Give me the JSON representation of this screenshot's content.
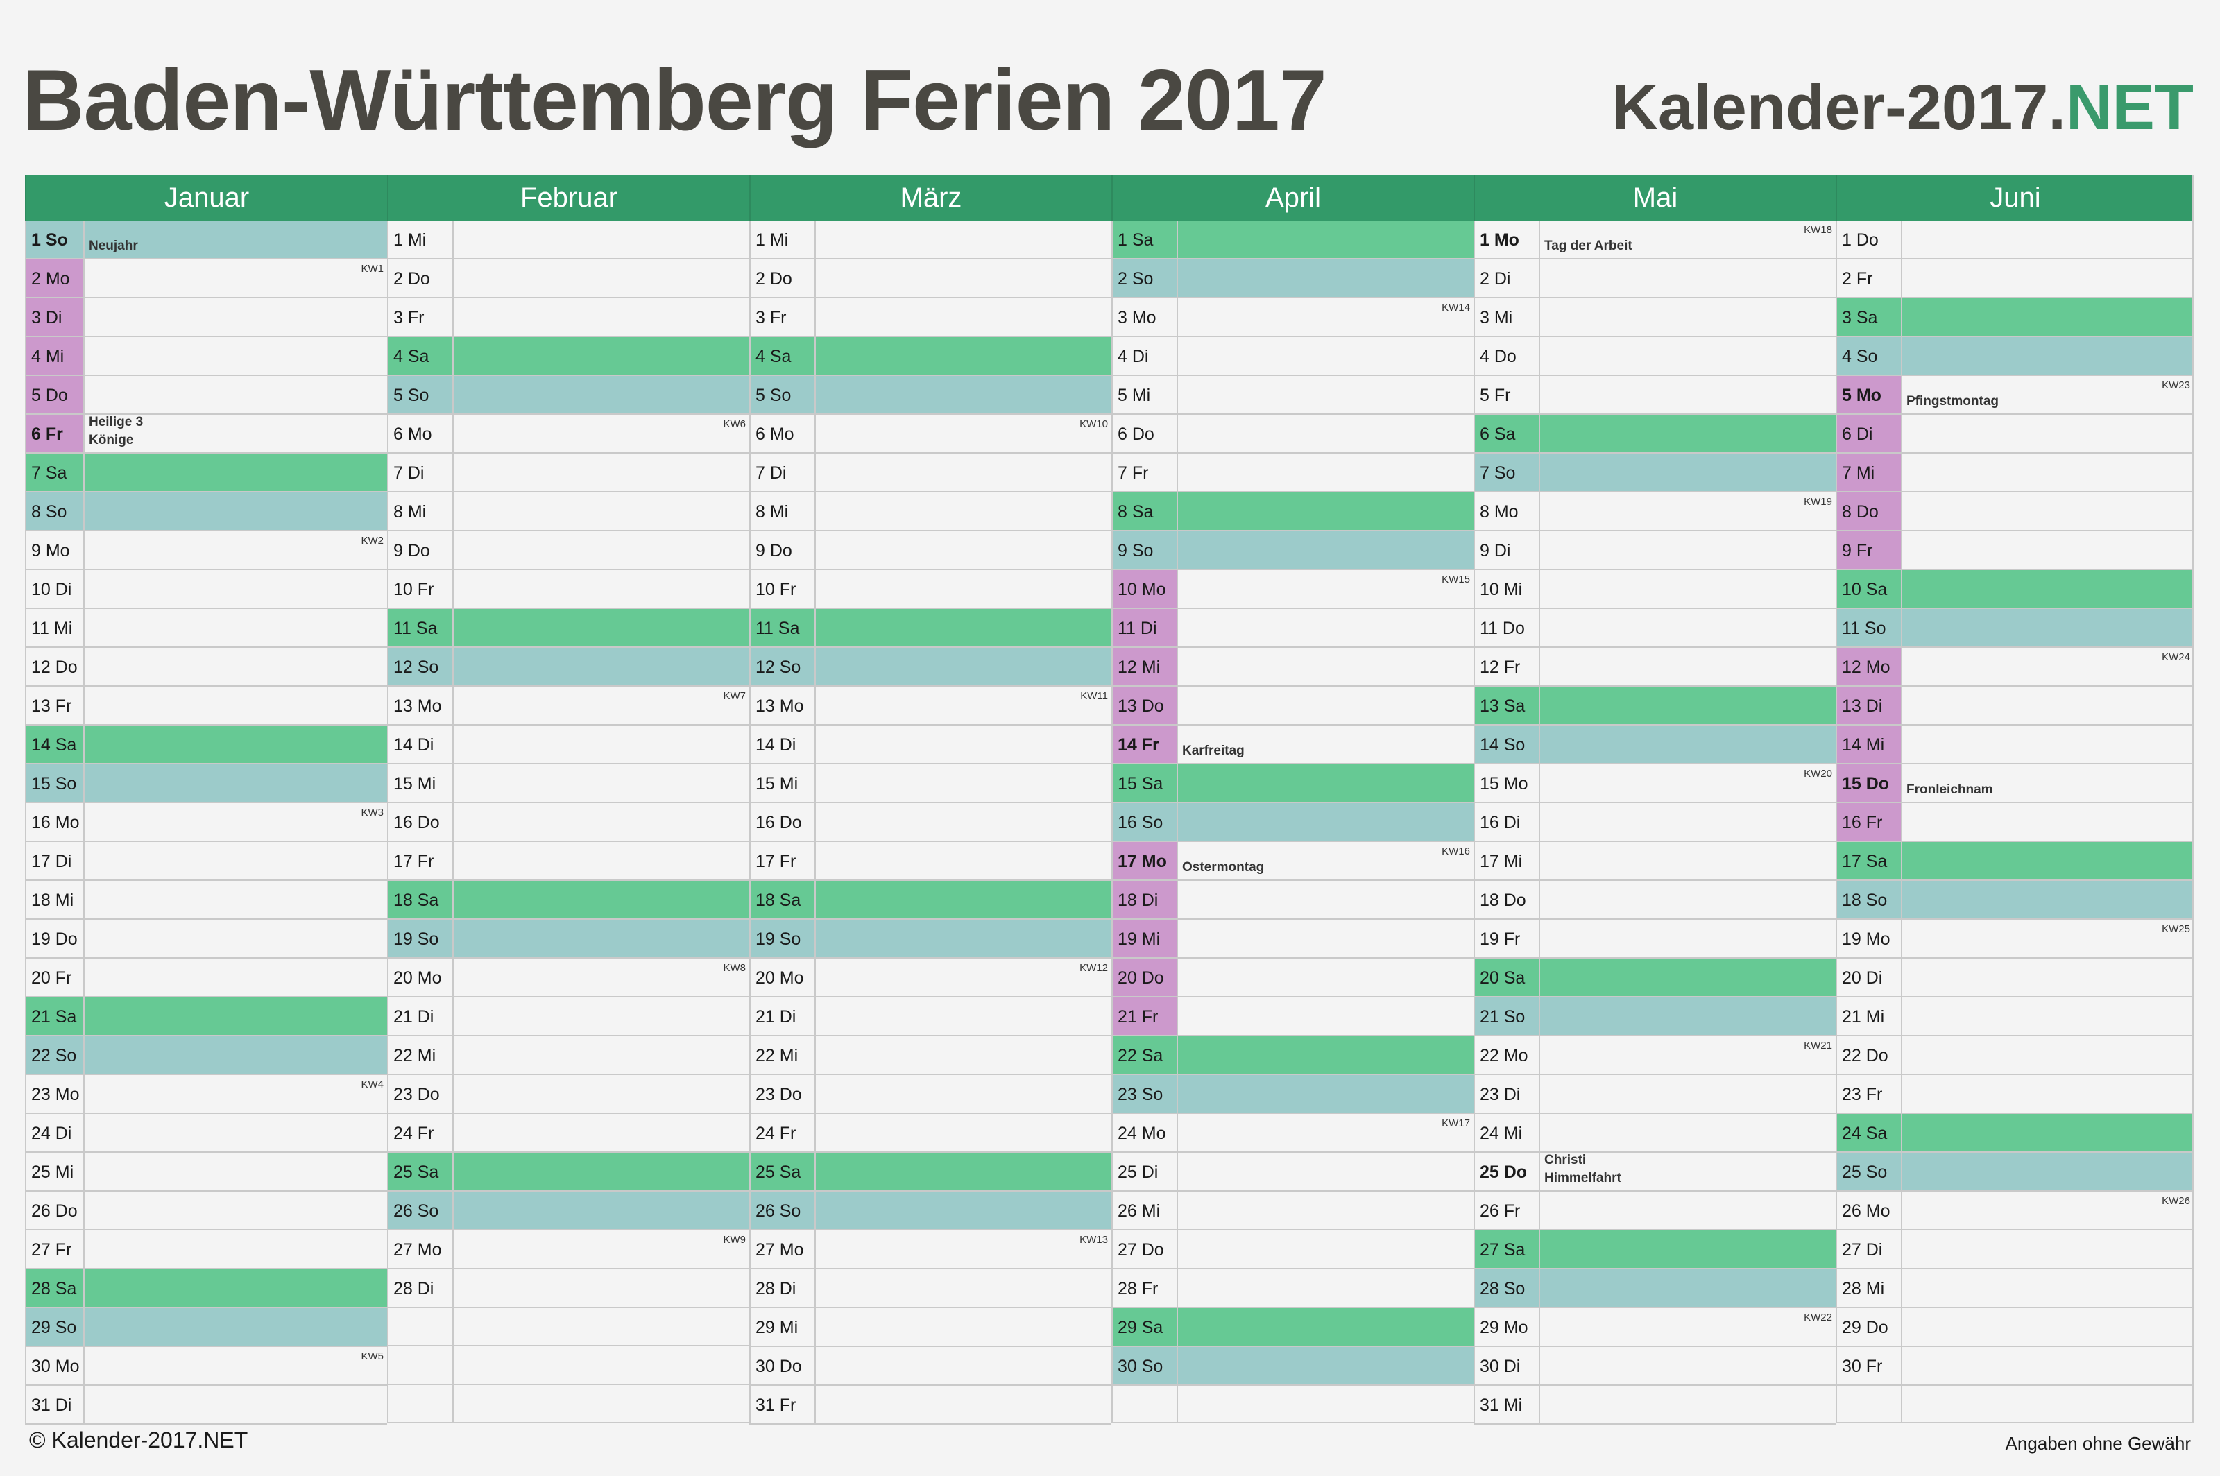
{
  "title": "Baden-Württemberg Ferien 2017",
  "brand": {
    "main": "Kalender-2017.",
    "accent": ".NET"
  },
  "colors": {
    "header": "#339a69",
    "saturday": "#66c994",
    "sunday": "#9ccbca",
    "vacation": "#cc99cc",
    "brand_accent": "#3a9a6c"
  },
  "months": [
    {
      "name": "Januar",
      "days": [
        {
          "label": "1 So",
          "type": "so",
          "holiday": "Neujahr",
          "vacation": false
        },
        {
          "label": "2 Mo",
          "type": "",
          "vacation": true,
          "kw": "KW1"
        },
        {
          "label": "3 Di",
          "type": "",
          "vacation": true
        },
        {
          "label": "4 Mi",
          "type": "",
          "vacation": true
        },
        {
          "label": "5 Do",
          "type": "",
          "vacation": true
        },
        {
          "label": "6 Fr",
          "type": "",
          "vacation": true,
          "holiday": "Heilige 3\nKönige"
        },
        {
          "label": "7 Sa",
          "type": "sa"
        },
        {
          "label": "8 So",
          "type": "so"
        },
        {
          "label": "9 Mo",
          "type": "",
          "kw": "KW2"
        },
        {
          "label": "10 Di",
          "type": ""
        },
        {
          "label": "11 Mi",
          "type": ""
        },
        {
          "label": "12 Do",
          "type": ""
        },
        {
          "label": "13 Fr",
          "type": ""
        },
        {
          "label": "14 Sa",
          "type": "sa"
        },
        {
          "label": "15 So",
          "type": "so"
        },
        {
          "label": "16 Mo",
          "type": "",
          "kw": "KW3"
        },
        {
          "label": "17 Di",
          "type": ""
        },
        {
          "label": "18 Mi",
          "type": ""
        },
        {
          "label": "19 Do",
          "type": ""
        },
        {
          "label": "20 Fr",
          "type": ""
        },
        {
          "label": "21 Sa",
          "type": "sa"
        },
        {
          "label": "22 So",
          "type": "so"
        },
        {
          "label": "23 Mo",
          "type": "",
          "kw": "KW4"
        },
        {
          "label": "24 Di",
          "type": ""
        },
        {
          "label": "25 Mi",
          "type": ""
        },
        {
          "label": "26 Do",
          "type": ""
        },
        {
          "label": "27 Fr",
          "type": ""
        },
        {
          "label": "28 Sa",
          "type": "sa"
        },
        {
          "label": "29 So",
          "type": "so"
        },
        {
          "label": "30 Mo",
          "type": "",
          "kw": "KW5"
        },
        {
          "label": "31 Di",
          "type": ""
        }
      ]
    },
    {
      "name": "Februar",
      "days": [
        {
          "label": "1 Mi",
          "type": ""
        },
        {
          "label": "2 Do",
          "type": ""
        },
        {
          "label": "3 Fr",
          "type": ""
        },
        {
          "label": "4 Sa",
          "type": "sa"
        },
        {
          "label": "5 So",
          "type": "so"
        },
        {
          "label": "6 Mo",
          "type": "",
          "kw": "KW6"
        },
        {
          "label": "7 Di",
          "type": ""
        },
        {
          "label": "8 Mi",
          "type": ""
        },
        {
          "label": "9 Do",
          "type": ""
        },
        {
          "label": "10 Fr",
          "type": ""
        },
        {
          "label": "11 Sa",
          "type": "sa"
        },
        {
          "label": "12 So",
          "type": "so"
        },
        {
          "label": "13 Mo",
          "type": "",
          "kw": "KW7"
        },
        {
          "label": "14 Di",
          "type": ""
        },
        {
          "label": "15 Mi",
          "type": ""
        },
        {
          "label": "16 Do",
          "type": ""
        },
        {
          "label": "17 Fr",
          "type": ""
        },
        {
          "label": "18 Sa",
          "type": "sa"
        },
        {
          "label": "19 So",
          "type": "so"
        },
        {
          "label": "20 Mo",
          "type": "",
          "kw": "KW8"
        },
        {
          "label": "21 Di",
          "type": ""
        },
        {
          "label": "22 Mi",
          "type": ""
        },
        {
          "label": "23 Do",
          "type": ""
        },
        {
          "label": "24 Fr",
          "type": ""
        },
        {
          "label": "25 Sa",
          "type": "sa"
        },
        {
          "label": "26 So",
          "type": "so"
        },
        {
          "label": "27 Mo",
          "type": "",
          "kw": "KW9"
        },
        {
          "label": "28 Di",
          "type": ""
        }
      ]
    },
    {
      "name": "März",
      "days": [
        {
          "label": "1 Mi",
          "type": ""
        },
        {
          "label": "2 Do",
          "type": ""
        },
        {
          "label": "3 Fr",
          "type": ""
        },
        {
          "label": "4 Sa",
          "type": "sa"
        },
        {
          "label": "5 So",
          "type": "so"
        },
        {
          "label": "6 Mo",
          "type": "",
          "kw": "KW10"
        },
        {
          "label": "7 Di",
          "type": ""
        },
        {
          "label": "8 Mi",
          "type": ""
        },
        {
          "label": "9 Do",
          "type": ""
        },
        {
          "label": "10 Fr",
          "type": ""
        },
        {
          "label": "11 Sa",
          "type": "sa"
        },
        {
          "label": "12 So",
          "type": "so"
        },
        {
          "label": "13 Mo",
          "type": "",
          "kw": "KW11"
        },
        {
          "label": "14 Di",
          "type": ""
        },
        {
          "label": "15 Mi",
          "type": ""
        },
        {
          "label": "16 Do",
          "type": ""
        },
        {
          "label": "17 Fr",
          "type": ""
        },
        {
          "label": "18 Sa",
          "type": "sa"
        },
        {
          "label": "19 So",
          "type": "so"
        },
        {
          "label": "20 Mo",
          "type": "",
          "kw": "KW12"
        },
        {
          "label": "21 Di",
          "type": ""
        },
        {
          "label": "22 Mi",
          "type": ""
        },
        {
          "label": "23 Do",
          "type": ""
        },
        {
          "label": "24 Fr",
          "type": ""
        },
        {
          "label": "25 Sa",
          "type": "sa"
        },
        {
          "label": "26 So",
          "type": "so"
        },
        {
          "label": "27 Mo",
          "type": "",
          "kw": "KW13"
        },
        {
          "label": "28 Di",
          "type": ""
        },
        {
          "label": "29 Mi",
          "type": ""
        },
        {
          "label": "30 Do",
          "type": ""
        },
        {
          "label": "31 Fr",
          "type": ""
        }
      ]
    },
    {
      "name": "April",
      "days": [
        {
          "label": "1 Sa",
          "type": "sa"
        },
        {
          "label": "2 So",
          "type": "so"
        },
        {
          "label": "3 Mo",
          "type": "",
          "kw": "KW14"
        },
        {
          "label": "4 Di",
          "type": ""
        },
        {
          "label": "5 Mi",
          "type": ""
        },
        {
          "label": "6 Do",
          "type": ""
        },
        {
          "label": "7 Fr",
          "type": ""
        },
        {
          "label": "8 Sa",
          "type": "sa"
        },
        {
          "label": "9 So",
          "type": "so"
        },
        {
          "label": "10 Mo",
          "type": "",
          "vacation": true,
          "kw": "KW15"
        },
        {
          "label": "11 Di",
          "type": "",
          "vacation": true
        },
        {
          "label": "12 Mi",
          "type": "",
          "vacation": true
        },
        {
          "label": "13 Do",
          "type": "",
          "vacation": true
        },
        {
          "label": "14 Fr",
          "type": "",
          "vacation": true,
          "holiday": "Karfreitag"
        },
        {
          "label": "15 Sa",
          "type": "sa"
        },
        {
          "label": "16 So",
          "type": "so"
        },
        {
          "label": "17 Mo",
          "type": "",
          "vacation": true,
          "holiday": "Ostermontag",
          "kw": "KW16"
        },
        {
          "label": "18 Di",
          "type": "",
          "vacation": true
        },
        {
          "label": "19 Mi",
          "type": "",
          "vacation": true
        },
        {
          "label": "20 Do",
          "type": "",
          "vacation": true
        },
        {
          "label": "21 Fr",
          "type": "",
          "vacation": true
        },
        {
          "label": "22 Sa",
          "type": "sa"
        },
        {
          "label": "23 So",
          "type": "so"
        },
        {
          "label": "24 Mo",
          "type": "",
          "kw": "KW17"
        },
        {
          "label": "25 Di",
          "type": ""
        },
        {
          "label": "26 Mi",
          "type": ""
        },
        {
          "label": "27 Do",
          "type": ""
        },
        {
          "label": "28 Fr",
          "type": ""
        },
        {
          "label": "29 Sa",
          "type": "sa"
        },
        {
          "label": "30 So",
          "type": "so"
        }
      ]
    },
    {
      "name": "Mai",
      "days": [
        {
          "label": "1 Mo",
          "type": "",
          "holiday": "Tag der Arbeit",
          "kw": "KW18"
        },
        {
          "label": "2 Di",
          "type": ""
        },
        {
          "label": "3 Mi",
          "type": ""
        },
        {
          "label": "4 Do",
          "type": ""
        },
        {
          "label": "5 Fr",
          "type": ""
        },
        {
          "label": "6 Sa",
          "type": "sa"
        },
        {
          "label": "7 So",
          "type": "so"
        },
        {
          "label": "8 Mo",
          "type": "",
          "kw": "KW19"
        },
        {
          "label": "9 Di",
          "type": ""
        },
        {
          "label": "10 Mi",
          "type": ""
        },
        {
          "label": "11 Do",
          "type": ""
        },
        {
          "label": "12 Fr",
          "type": ""
        },
        {
          "label": "13 Sa",
          "type": "sa"
        },
        {
          "label": "14 So",
          "type": "so"
        },
        {
          "label": "15 Mo",
          "type": "",
          "kw": "KW20"
        },
        {
          "label": "16 Di",
          "type": ""
        },
        {
          "label": "17 Mi",
          "type": ""
        },
        {
          "label": "18 Do",
          "type": ""
        },
        {
          "label": "19 Fr",
          "type": ""
        },
        {
          "label": "20 Sa",
          "type": "sa"
        },
        {
          "label": "21 So",
          "type": "so"
        },
        {
          "label": "22 Mo",
          "type": "",
          "kw": "KW21"
        },
        {
          "label": "23 Di",
          "type": ""
        },
        {
          "label": "24 Mi",
          "type": ""
        },
        {
          "label": "25 Do",
          "type": "",
          "holiday": "Christi\nHimmelfahrt"
        },
        {
          "label": "26 Fr",
          "type": ""
        },
        {
          "label": "27 Sa",
          "type": "sa"
        },
        {
          "label": "28 So",
          "type": "so"
        },
        {
          "label": "29 Mo",
          "type": "",
          "kw": "KW22"
        },
        {
          "label": "30 Di",
          "type": ""
        },
        {
          "label": "31 Mi",
          "type": ""
        }
      ]
    },
    {
      "name": "Juni",
      "days": [
        {
          "label": "1 Do",
          "type": ""
        },
        {
          "label": "2 Fr",
          "type": ""
        },
        {
          "label": "3 Sa",
          "type": "sa"
        },
        {
          "label": "4 So",
          "type": "so"
        },
        {
          "label": "5 Mo",
          "type": "",
          "vacation": true,
          "holiday": "Pfingstmontag",
          "kw": "KW23"
        },
        {
          "label": "6 Di",
          "type": "",
          "vacation": true
        },
        {
          "label": "7 Mi",
          "type": "",
          "vacation": true
        },
        {
          "label": "8 Do",
          "type": "",
          "vacation": true
        },
        {
          "label": "9 Fr",
          "type": "",
          "vacation": true
        },
        {
          "label": "10 Sa",
          "type": "sa"
        },
        {
          "label": "11 So",
          "type": "so"
        },
        {
          "label": "12 Mo",
          "type": "",
          "vacation": true,
          "kw": "KW24"
        },
        {
          "label": "13 Di",
          "type": "",
          "vacation": true
        },
        {
          "label": "14 Mi",
          "type": "",
          "vacation": true
        },
        {
          "label": "15 Do",
          "type": "",
          "vacation": true,
          "holiday": "Fronleichnam"
        },
        {
          "label": "16 Fr",
          "type": "",
          "vacation": true
        },
        {
          "label": "17 Sa",
          "type": "sa"
        },
        {
          "label": "18 So",
          "type": "so"
        },
        {
          "label": "19 Mo",
          "type": "",
          "kw": "KW25"
        },
        {
          "label": "20 Di",
          "type": ""
        },
        {
          "label": "21 Mi",
          "type": ""
        },
        {
          "label": "22 Do",
          "type": ""
        },
        {
          "label": "23 Fr",
          "type": ""
        },
        {
          "label": "24 Sa",
          "type": "sa"
        },
        {
          "label": "25 So",
          "type": "so"
        },
        {
          "label": "26 Mo",
          "type": "",
          "kw": "KW26"
        },
        {
          "label": "27 Di",
          "type": ""
        },
        {
          "label": "28 Mi",
          "type": ""
        },
        {
          "label": "29 Do",
          "type": ""
        },
        {
          "label": "30 Fr",
          "type": ""
        }
      ]
    }
  ],
  "footer": {
    "copyright": "© Kalender-2017.NET",
    "disclaimer": "Angaben ohne Gewähr"
  }
}
